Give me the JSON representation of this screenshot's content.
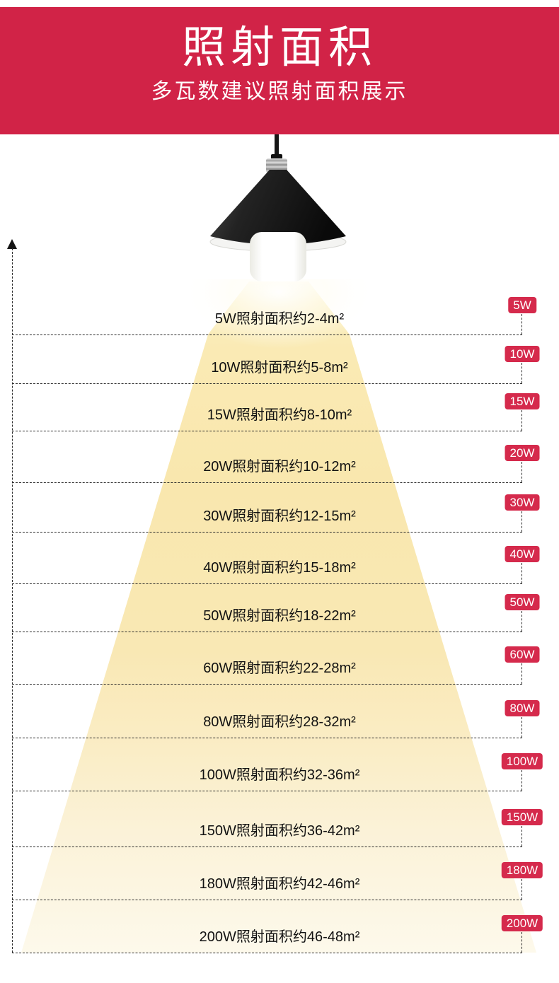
{
  "header": {
    "title": "照射面积",
    "subtitle": "多瓦数建议照射面积展示"
  },
  "icons": {
    "lamp": "pendant-cone-lamp-with-bulb",
    "axis_arrow": "up-arrow"
  },
  "colors": {
    "banner_red": "#d12347",
    "badge_red": "#d52a4c",
    "badge_text": "#ffffff",
    "cone_yellow": "#f9e7ae",
    "line_dark": "#2b2b2b",
    "text_dark": "#111111"
  },
  "rows": [
    {
      "badge": "5W",
      "label": "5W照射面积约2-4m²"
    },
    {
      "badge": "10W",
      "label": "10W照射面积约5-8m²"
    },
    {
      "badge": "15W",
      "label": "15W照射面积约8-10m²"
    },
    {
      "badge": "20W",
      "label": "20W照射面积约10-12m²"
    },
    {
      "badge": "30W",
      "label": "30W照射面积约12-15m²"
    },
    {
      "badge": "40W",
      "label": "40W照射面积约15-18m²"
    },
    {
      "badge": "50W",
      "label": "50W照射面积约18-22m²"
    },
    {
      "badge": "60W",
      "label": "60W照射面积约22-28m²"
    },
    {
      "badge": "80W",
      "label": "80W照射面积约28-32m²"
    },
    {
      "badge": "100W",
      "label": "100W照射面积约32-36m²"
    },
    {
      "badge": "150W",
      "label": "150W照射面积约36-42m²"
    },
    {
      "badge": "180W",
      "label": "180W照射面积约42-46m²"
    },
    {
      "badge": "200W",
      "label": "200W照射面积约46-48m²"
    }
  ]
}
